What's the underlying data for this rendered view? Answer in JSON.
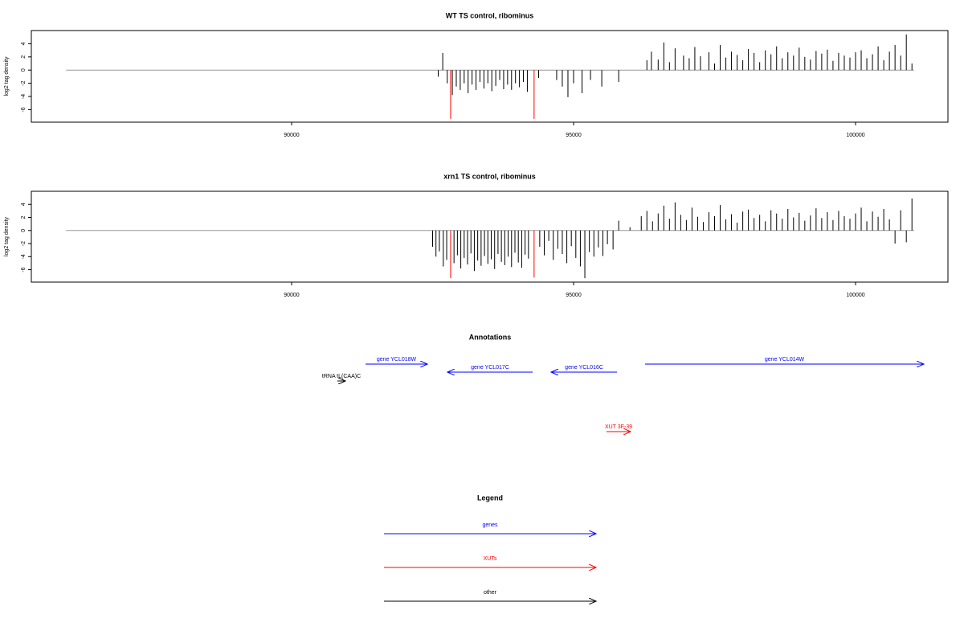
{
  "chart_data": [
    {
      "type": "bar",
      "title": "WT TS control, ribominus",
      "y_label": "log2 tag density",
      "xlim": [
        85385,
        101638
      ],
      "xticks": [
        90000,
        95000,
        100000
      ],
      "ylim": [
        -7.9,
        6
      ],
      "yticks": [
        -6,
        -4,
        -2,
        0,
        2,
        4
      ],
      "baseline": {
        "x": [
          86000,
          101040
        ],
        "value": 0,
        "color": "#999999"
      },
      "series": [
        {
          "color": "#000000",
          "x": [
            92600,
            92680,
            92760,
            92850,
            92920,
            92990,
            93060,
            93130,
            93200,
            93270,
            93340,
            93410,
            93480,
            93550,
            93620,
            93690,
            93760,
            93830,
            93900,
            93970,
            94040,
            94110,
            94180,
            94380,
            94700,
            94800,
            94900,
            95000,
            95150,
            95300,
            95500,
            95800,
            96300,
            96380,
            96500,
            96600,
            96700,
            96800,
            96950,
            97050,
            97150,
            97250,
            97400,
            97500,
            97600,
            97700,
            97800,
            97900,
            98000,
            98100,
            98200,
            98300,
            98400,
            98500,
            98600,
            98700,
            98800,
            98900,
            99000,
            99100,
            99200,
            99300,
            99400,
            99500,
            99600,
            99700,
            99800,
            99900,
            100000,
            100100,
            100200,
            100300,
            100400,
            100500,
            100600,
            100700,
            100800,
            100900,
            101000
          ],
          "values": [
            -1,
            2.6,
            -2,
            -3.8,
            -2.5,
            -3,
            -2,
            -3.5,
            -2.2,
            -3,
            -1.8,
            -2.8,
            -2,
            -3.2,
            -2.4,
            -1.5,
            -2.9,
            -2.2,
            -3,
            -2,
            -2.6,
            -1.8,
            -3.3,
            -1.2,
            -1.5,
            -2.5,
            -4.1,
            -2,
            -3.5,
            -1.5,
            -2.5,
            -1.8,
            1.5,
            2.8,
            1.6,
            4.2,
            1.2,
            3.3,
            2.2,
            1.8,
            3.5,
            2.1,
            2.7,
            1,
            3.8,
            1.9,
            2.8,
            2.3,
            1.5,
            3.2,
            2.6,
            1.2,
            3,
            2.4,
            3.6,
            1.8,
            2.7,
            2.2,
            3.4,
            2,
            1.6,
            2.9,
            2.5,
            3.1,
            1.4,
            2.6,
            2.2,
            1.9,
            2.7,
            3,
            1.8,
            2.4,
            3.6,
            1.5,
            2.8,
            3.8,
            2.2,
            5.4,
            1
          ]
        },
        {
          "color": "#ff0000",
          "x": [
            92820,
            94300
          ],
          "values": [
            -7.4,
            -7.4
          ]
        }
      ]
    },
    {
      "type": "bar",
      "title": "xrn1 TS control, ribominus",
      "y_label": "log2 tag density",
      "xlim": [
        85385,
        101638
      ],
      "xticks": [
        90000,
        95000,
        100000
      ],
      "ylim": [
        -7.9,
        6
      ],
      "yticks": [
        -6,
        -4,
        -2,
        0,
        2,
        4
      ],
      "baseline": {
        "x": [
          86000,
          101040
        ],
        "value": 0,
        "color": "#999999"
      },
      "series": [
        {
          "color": "#000000",
          "x": [
            92500,
            92560,
            92620,
            92690,
            92750,
            92880,
            92940,
            93000,
            93060,
            93120,
            93180,
            93240,
            93300,
            93360,
            93420,
            93480,
            93540,
            93600,
            93660,
            93720,
            93780,
            93840,
            93900,
            93960,
            94020,
            94080,
            94140,
            94200,
            94400,
            94480,
            94560,
            94640,
            94720,
            94800,
            94880,
            94960,
            95040,
            95120,
            95200,
            95280,
            95360,
            95440,
            95520,
            95600,
            95700,
            95800,
            96000,
            96200,
            96300,
            96400,
            96500,
            96600,
            96700,
            96800,
            96900,
            97000,
            97100,
            97200,
            97300,
            97400,
            97500,
            97600,
            97700,
            97800,
            97900,
            98000,
            98100,
            98200,
            98300,
            98400,
            98500,
            98600,
            98700,
            98800,
            98900,
            99000,
            99100,
            99200,
            99300,
            99400,
            99500,
            99600,
            99700,
            99800,
            99900,
            100000,
            100100,
            100200,
            100300,
            100400,
            100500,
            100600,
            100700,
            100800,
            100900,
            101000
          ],
          "values": [
            -2.5,
            -4,
            -3.2,
            -5.5,
            -4.5,
            -5,
            -3.8,
            -5.8,
            -4.2,
            -5.2,
            -3.5,
            -6.2,
            -4.6,
            -5.4,
            -3.9,
            -5.1,
            -4.4,
            -5.9,
            -3.6,
            -4.8,
            -5.3,
            -4,
            -5.6,
            -3.4,
            -4.9,
            -5.7,
            -3.7,
            -4.3,
            -2.5,
            -3.8,
            -1.6,
            -4.5,
            -2.8,
            -3.6,
            -5,
            -2.4,
            -4.2,
            -5.5,
            -7.3,
            -3.3,
            -4,
            -2.6,
            -3.9,
            -2.1,
            -2.9,
            1.5,
            0.5,
            2.2,
            3,
            1.4,
            2.6,
            3.8,
            1.8,
            4.3,
            2.4,
            1.6,
            3.5,
            2.1,
            1.3,
            2.8,
            2.2,
            3.9,
            1.7,
            2.5,
            1.2,
            2.9,
            3.2,
            1.9,
            2.4,
            1.4,
            3.1,
            2.6,
            1.8,
            3.3,
            2,
            2.7,
            1.5,
            2.3,
            3.4,
            1.9,
            2.8,
            1.6,
            3,
            2.2,
            1.8,
            2.6,
            3.5,
            1.4,
            2.9,
            2.1,
            3.3,
            1.7,
            -2,
            3.1,
            -1.8,
            4.9
          ]
        },
        {
          "color": "#ff0000",
          "x": [
            92820,
            94300
          ],
          "values": [
            -7.3,
            -7.2
          ]
        }
      ]
    }
  ],
  "annotations": {
    "title": "Annotations",
    "features": [
      {
        "label": "gene YCL018W",
        "x0": 91311,
        "x1": 92408,
        "color": "#0000ff",
        "row": 0
      },
      {
        "label": "gene YCL017C",
        "x0": 94274,
        "x1": 92764,
        "color": "#0000ff",
        "row": 1
      },
      {
        "label": "gene YCL016C",
        "x0": 95770,
        "x1": 94602,
        "color": "#0000ff",
        "row": 1
      },
      {
        "label": "gene YCL014W",
        "x0": 96268,
        "x1": 101211,
        "color": "#0000ff",
        "row": 0
      },
      {
        "label": "tRNA tL(CAA)C",
        "x0": 90812,
        "x1": 90955,
        "color": "#000000",
        "row": 2
      },
      {
        "label": "XUT 3F-39",
        "x0": 95584,
        "x1": 96012,
        "color": "#ff0000",
        "row": 3
      }
    ]
  },
  "legend": {
    "title": "Legend",
    "entries": [
      {
        "label": "genes",
        "color": "#0000ff"
      },
      {
        "label": "XUTs",
        "color": "#ff0000"
      },
      {
        "label": "other",
        "color": "#000000"
      }
    ]
  }
}
